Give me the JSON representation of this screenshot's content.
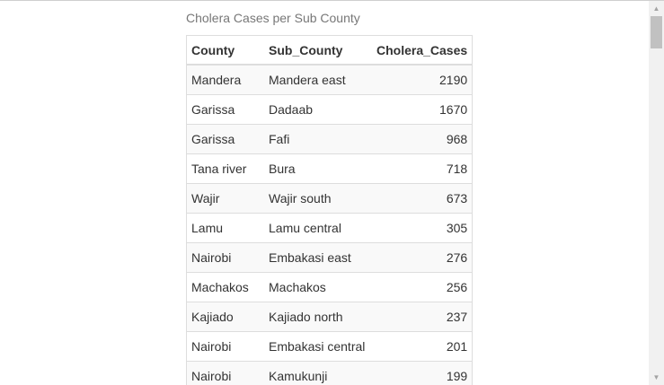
{
  "caption": "Cholera Cases per Sub County",
  "table": {
    "headers": [
      "County",
      "Sub_County",
      "Cholera_Cases"
    ],
    "rows": [
      [
        "Mandera",
        "Mandera east",
        "2190"
      ],
      [
        "Garissa",
        "Dadaab",
        "1670"
      ],
      [
        "Garissa",
        "Fafi",
        "968"
      ],
      [
        "Tana river",
        "Bura",
        "718"
      ],
      [
        "Wajir",
        "Wajir south",
        "673"
      ],
      [
        "Lamu",
        "Lamu central",
        "305"
      ],
      [
        "Nairobi",
        "Embakasi east",
        "276"
      ],
      [
        "Machakos",
        "Machakos",
        "256"
      ],
      [
        "Kajiado",
        "Kajiado north",
        "237"
      ],
      [
        "Nairobi",
        "Embakasi central",
        "201"
      ],
      [
        "Nairobi",
        "Kamukunji",
        "199"
      ]
    ]
  },
  "scrollbar": {
    "up_icon": "▲",
    "down_icon": "▼",
    "scroll_position": 0.0
  }
}
